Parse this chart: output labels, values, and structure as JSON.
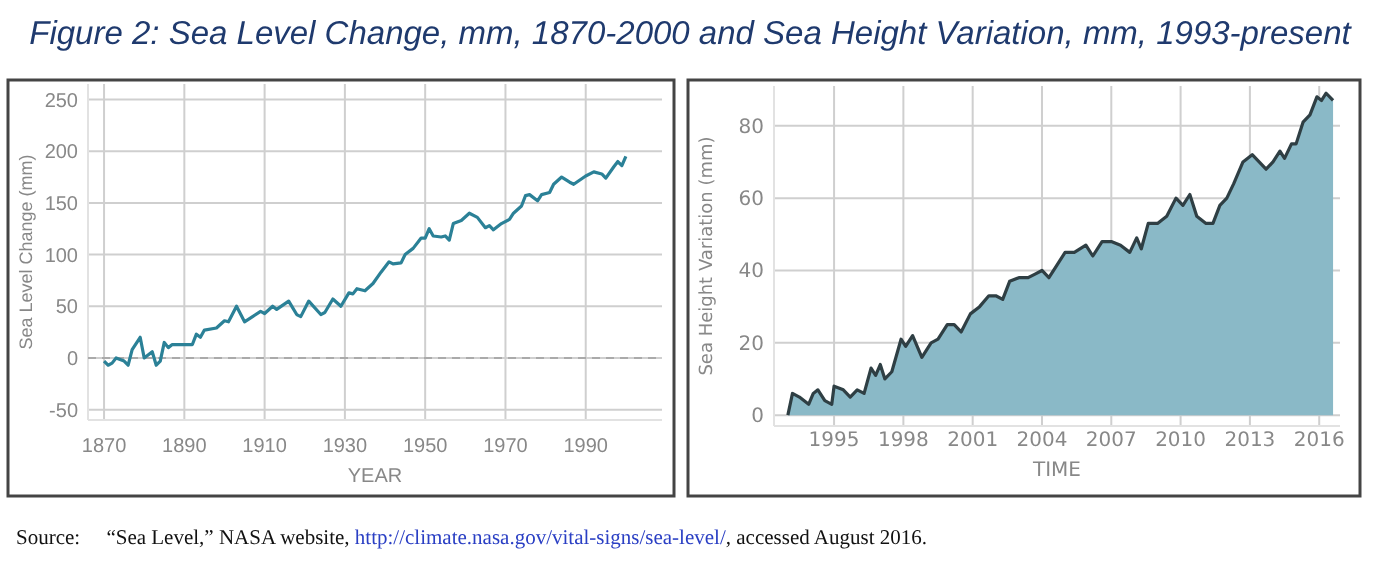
{
  "chart_data": [
    {
      "type": "line",
      "title": "Figure 2: Sea Level Change, mm, 1870-2000 and Sea Height Variation, mm, 1993-present",
      "xlabel": "YEAR",
      "ylabel": "Sea Level Change (mm)",
      "annotations": [
        "Source:     “Sea Level,” NASA website, http://climate.nasa.gov/vital-signs/sea-level/, accessed August 2016."
      ],
      "x": [
        1870,
        1871,
        1872,
        1873,
        1875,
        1876,
        1877,
        1879,
        1880,
        1882,
        1883,
        1884,
        1885,
        1886,
        1887,
        1890,
        1892,
        1893,
        1894,
        1895,
        1898,
        1900,
        1901,
        1903,
        1905,
        1907,
        1909,
        1910,
        1912,
        1913,
        1916,
        1918,
        1919,
        1921,
        1924,
        1925,
        1927,
        1929,
        1931,
        1932,
        1933,
        1935,
        1937,
        1939,
        1941,
        1942,
        1944,
        1945,
        1947,
        1949,
        1950,
        1951,
        1952,
        1954,
        1955,
        1956,
        1957,
        1959,
        1961,
        1963,
        1965,
        1966,
        1967,
        1969,
        1971,
        1972,
        1974,
        1975,
        1976,
        1978,
        1979,
        1981,
        1982,
        1984,
        1986,
        1987,
        1990,
        1992,
        1994,
        1995,
        1997,
        1998,
        1999,
        2000
      ],
      "series": [
        {
          "color": "#2b8197",
          "values": [
            -3,
            -7,
            -5,
            0,
            -3,
            -7,
            8,
            20,
            0,
            6,
            -7,
            -3,
            15,
            10,
            13,
            13,
            13,
            23,
            20,
            27,
            29,
            36,
            35,
            50,
            35,
            40,
            45,
            43,
            50,
            47,
            55,
            42,
            40,
            55,
            42,
            44,
            57,
            50,
            63,
            62,
            67,
            65,
            72,
            83,
            93,
            91,
            92,
            100,
            106,
            116,
            116,
            125,
            118,
            117,
            118,
            114,
            130,
            133,
            140,
            136,
            126,
            128,
            124,
            130,
            134,
            140,
            147,
            157,
            158,
            152,
            158,
            160,
            168,
            175,
            170,
            168,
            176,
            180,
            178,
            174,
            185,
            190,
            186,
            195
          ]
        }
      ],
      "xlim": [
        1866,
        2009
      ],
      "xticks": [
        1870,
        1890,
        1910,
        1930,
        1950,
        1970,
        1990
      ],
      "ylim": [
        -60,
        265
      ],
      "yticks": [
        -50,
        0,
        50,
        100,
        150,
        200,
        250
      ],
      "grid": true,
      "ref_lines": [
        {
          "axis": "y",
          "value": 0,
          "line_style": "dashed",
          "color": "#aaaaaa"
        }
      ]
    },
    {
      "type": "area",
      "xlabel": "TIME",
      "ylabel": "Sea Height Variation (mm)",
      "x": [
        1993.0,
        1993.2,
        1993.5,
        1993.9,
        1994.1,
        1994.3,
        1994.6,
        1994.9,
        1995.0,
        1995.4,
        1995.7,
        1996.0,
        1996.3,
        1996.6,
        1996.8,
        1997.0,
        1997.2,
        1997.5,
        1997.9,
        1998.1,
        1998.4,
        1998.8,
        1999.2,
        1999.5,
        1999.9,
        2000.2,
        2000.5,
        2000.9,
        2001.3,
        2001.7,
        2002.0,
        2002.3,
        2002.6,
        2003.0,
        2003.4,
        2003.7,
        2004.0,
        2004.3,
        2004.6,
        2005.0,
        2005.4,
        2005.9,
        2006.2,
        2006.6,
        2007.0,
        2007.4,
        2007.8,
        2008.1,
        2008.3,
        2008.6,
        2009.0,
        2009.4,
        2009.8,
        2010.1,
        2010.4,
        2010.7,
        2011.1,
        2011.4,
        2011.7,
        2012.0,
        2012.3,
        2012.7,
        2013.1,
        2013.4,
        2013.7,
        2014.0,
        2014.3,
        2014.5,
        2014.8,
        2015.0,
        2015.3,
        2015.6,
        2015.9,
        2016.1,
        2016.3,
        2016.6
      ],
      "series": [
        {
          "color": "#8ab9c7",
          "values": [
            0,
            6,
            5,
            3,
            6,
            7,
            4,
            3,
            8,
            7,
            5,
            7,
            6,
            13,
            11,
            14,
            10,
            12,
            21,
            19,
            22,
            16,
            20,
            21,
            25,
            25,
            23,
            28,
            30,
            33,
            33,
            32,
            37,
            38,
            38,
            39,
            40,
            38,
            41,
            45,
            45,
            47,
            44,
            48,
            48,
            47,
            45,
            49,
            46,
            53,
            53,
            55,
            60,
            58,
            61,
            55,
            53,
            53,
            58,
            60,
            64,
            70,
            72,
            70,
            68,
            70,
            73,
            71,
            75,
            75,
            81,
            83,
            88,
            87,
            89,
            87
          ]
        }
      ],
      "xlim": [
        1992.4,
        2016.9
      ],
      "xticks": [
        1995,
        1998,
        2001,
        2004,
        2007,
        2010,
        2013,
        2016
      ],
      "ylim": [
        -3,
        91
      ],
      "yticks": [
        0,
        20,
        40,
        60,
        80
      ],
      "grid": true
    }
  ]
}
